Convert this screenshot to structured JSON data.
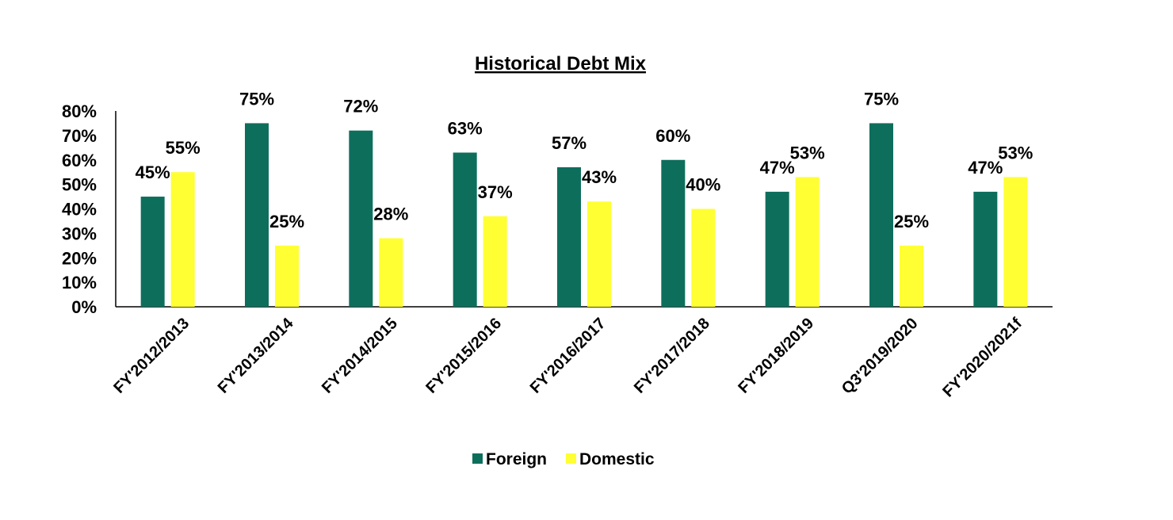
{
  "chart_data": {
    "type": "bar",
    "title": "Historical  Debt Mix",
    "categories": [
      "FY'2012/2013",
      "FY'2013/2014",
      "FY'2014/2015",
      "FY'2015/2016",
      "FY'2016/2017",
      "FY'2017/2018",
      "FY'2018/2019",
      "Q3'2019/2020",
      "FY'2020/2021f"
    ],
    "series": [
      {
        "name": "Foreign",
        "color": "#0e6e5c",
        "values": [
          45,
          75,
          72,
          63,
          57,
          60,
          47,
          75,
          47
        ],
        "labels": [
          "45%",
          "75%",
          "72%",
          "63%",
          "57%",
          "60%",
          "47%",
          "75%",
          "47%"
        ]
      },
      {
        "name": "Domestic",
        "color": "#ffff33",
        "values": [
          55,
          25,
          28,
          37,
          43,
          40,
          53,
          25,
          53
        ],
        "labels": [
          "55%",
          "25%",
          "28%",
          "37%",
          "43%",
          "40%",
          "53%",
          "25%",
          "53%"
        ]
      }
    ],
    "ylim": [
      0,
      80
    ],
    "yticks": [
      "0%",
      "10%",
      "20%",
      "30%",
      "40%",
      "50%",
      "60%",
      "70%",
      "80%"
    ],
    "grid": false,
    "legend_position": "bottom"
  }
}
